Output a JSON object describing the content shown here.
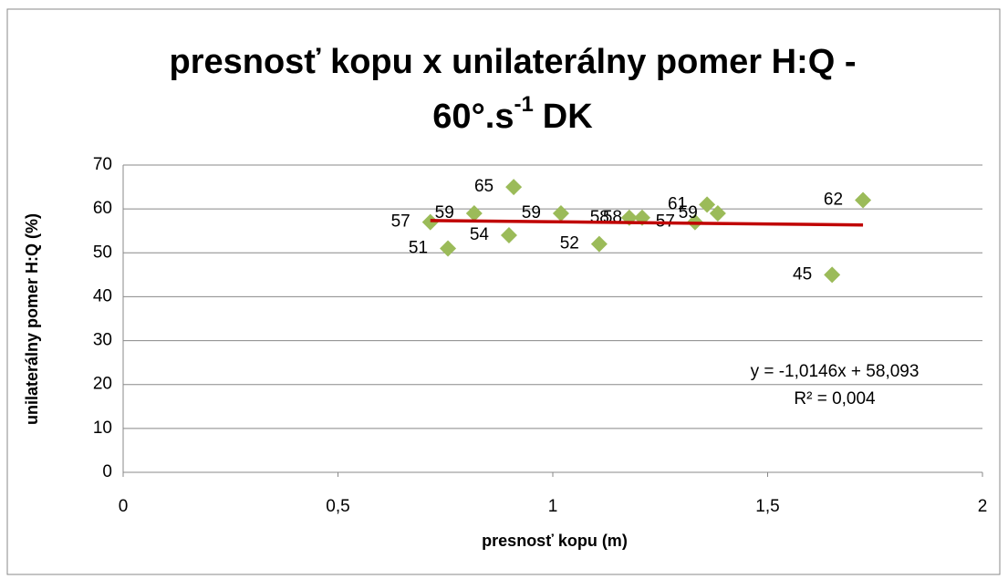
{
  "chart_data": {
    "type": "scatter",
    "title": [
      "presnosť kopu x unilaterálny pomer H:Q -",
      "60°.s",
      "-1",
      "DK"
    ],
    "x_label": "presnosť kopu (m)",
    "y_label": "unilaterálny pomer H:Q (%)",
    "series": [
      {
        "name": "H:Q",
        "color": "#9bbb59",
        "x": [
          0.715,
          0.756,
          0.817,
          0.898,
          0.909,
          1.019,
          1.108,
          1.178,
          1.208,
          1.331,
          1.359,
          1.384,
          1.65,
          1.722
        ],
        "values": [
          57,
          51,
          59,
          54,
          65,
          59,
          52,
          58,
          58,
          57,
          61,
          59,
          45,
          62
        ]
      }
    ],
    "trendline": {
      "color": "#c00000",
      "slope": -1.0146,
      "intercept": 58.093,
      "equation": "y = -1,0146x + 58,093",
      "r2": 0.004,
      "r2_label": "R² = 0,004"
    },
    "xlim": [
      0,
      2
    ],
    "xticks": [
      0,
      {
        "value": 0.5,
        "label": "0,5"
      },
      1,
      {
        "value": 1.5,
        "label": "1,5"
      },
      2
    ],
    "ylim": [
      0,
      70
    ],
    "yticks": [
      0,
      10,
      20,
      30,
      40,
      50,
      60,
      70
    ],
    "grid": true
  }
}
